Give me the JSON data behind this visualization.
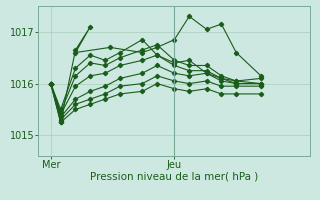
{
  "background_color": "#cce8e0",
  "grid_color": "#aaccbb",
  "line_color": "#1a5c1a",
  "tick_color": "#1a5c1a",
  "spine_color": "#7aaa99",
  "xlabel": "Pression niveau de la mer( hPa )",
  "xlabel_fontsize": 7.5,
  "yticks": [
    1015,
    1016,
    1017
  ],
  "ytick_fontsize": 7,
  "xtick_fontsize": 7,
  "xtick_labels": [
    "Mer",
    "Jeu"
  ],
  "xtick_positions": [
    0.0,
    0.5
  ],
  "xlim": [
    -0.05,
    1.05
  ],
  "ylim": [
    1014.6,
    1017.5
  ],
  "vline_x": 0.5,
  "series": [
    {
      "x": [
        0.0,
        0.04,
        0.1,
        0.16,
        0.1,
        0.24,
        0.37,
        0.43,
        0.5,
        0.56,
        0.63,
        0.69,
        0.75,
        0.85
      ],
      "y": [
        1016.0,
        1015.25,
        1016.65,
        1017.1,
        1016.6,
        1016.7,
        1016.6,
        1016.7,
        1016.85,
        1017.3,
        1017.05,
        1017.15,
        1016.6,
        1016.15
      ]
    },
    {
      "x": [
        0.0,
        0.04,
        0.1,
        0.16,
        0.22,
        0.28,
        0.37,
        0.43,
        0.5,
        0.56,
        0.63,
        0.69,
        0.75,
        0.85
      ],
      "y": [
        1016.0,
        1015.5,
        1016.3,
        1016.55,
        1016.45,
        1016.6,
        1016.85,
        1016.55,
        1016.4,
        1016.45,
        1016.2,
        1016.1,
        1016.05,
        1016.1
      ]
    },
    {
      "x": [
        0.0,
        0.04,
        0.1,
        0.16,
        0.22,
        0.28,
        0.37,
        0.43,
        0.5,
        0.56,
        0.63,
        0.69,
        0.75,
        0.85
      ],
      "y": [
        1016.0,
        1015.45,
        1016.15,
        1016.4,
        1016.35,
        1016.5,
        1016.65,
        1016.75,
        1016.45,
        1016.35,
        1016.35,
        1016.15,
        1016.05,
        1016.0
      ]
    },
    {
      "x": [
        0.0,
        0.04,
        0.1,
        0.16,
        0.22,
        0.28,
        0.37,
        0.43,
        0.5,
        0.56,
        0.63,
        0.69,
        0.75,
        0.85
      ],
      "y": [
        1016.0,
        1015.4,
        1015.95,
        1016.15,
        1016.2,
        1016.35,
        1016.45,
        1016.55,
        1016.35,
        1016.25,
        1016.25,
        1016.1,
        1016.0,
        1016.0
      ]
    },
    {
      "x": [
        0.0,
        0.04,
        0.1,
        0.16,
        0.22,
        0.28,
        0.37,
        0.43,
        0.5,
        0.56,
        0.63,
        0.69,
        0.75,
        0.85
      ],
      "y": [
        1016.0,
        1015.35,
        1015.7,
        1015.85,
        1015.95,
        1016.1,
        1016.2,
        1016.35,
        1016.2,
        1016.15,
        1016.2,
        1016.05,
        1016.0,
        1016.0
      ]
    },
    {
      "x": [
        0.0,
        0.04,
        0.1,
        0.16,
        0.22,
        0.28,
        0.37,
        0.43,
        0.5,
        0.56,
        0.63,
        0.69,
        0.75,
        0.85
      ],
      "y": [
        1016.0,
        1015.3,
        1015.6,
        1015.7,
        1015.8,
        1015.95,
        1016.0,
        1016.15,
        1016.05,
        1016.0,
        1016.05,
        1015.95,
        1015.95,
        1015.95
      ]
    },
    {
      "x": [
        0.0,
        0.04,
        0.1,
        0.16,
        0.22,
        0.28,
        0.37,
        0.43,
        0.5,
        0.56,
        0.63,
        0.69,
        0.75,
        0.85
      ],
      "y": [
        1016.0,
        1015.25,
        1015.5,
        1015.6,
        1015.7,
        1015.8,
        1015.85,
        1016.0,
        1015.9,
        1015.85,
        1015.9,
        1015.8,
        1015.8,
        1015.8
      ]
    }
  ]
}
